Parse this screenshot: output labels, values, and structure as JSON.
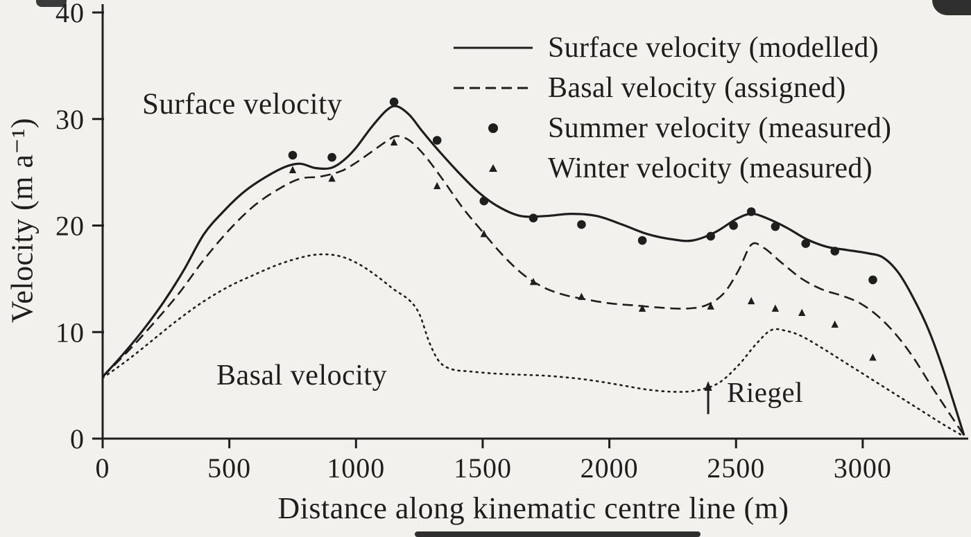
{
  "figure": {
    "background": "#f2f1ee",
    "ink": "#1e1e1e"
  },
  "chart_data": {
    "type": "line",
    "title": "",
    "xlabel": "Distance along kinematic centre line (m)",
    "ylabel": "Velocity (m a⁻¹)",
    "xlim": [
      0,
      3400
    ],
    "ylim": [
      0,
      40
    ],
    "x_ticks": [
      0,
      500,
      1000,
      1500,
      2000,
      2500,
      3000
    ],
    "y_ticks": [
      0,
      10,
      20,
      30,
      40
    ],
    "grid": false,
    "legend_position": "top-right",
    "legend": [
      {
        "label": "Surface velocity (modelled)",
        "swatch": "solid-line"
      },
      {
        "label": "Basal velocity (assigned)",
        "swatch": "dashed-line"
      },
      {
        "label": "Summer velocity (measured)",
        "swatch": "filled-circle"
      },
      {
        "label": "Winter velocity (measured)",
        "swatch": "filled-triangle"
      }
    ],
    "series": [
      {
        "name": "Surface velocity (modelled)",
        "style": "solid",
        "data_name": "surface-velocity-modelled-curve",
        "points": [
          [
            0,
            5.8
          ],
          [
            80,
            7.9
          ],
          [
            160,
            10.2
          ],
          [
            240,
            12.8
          ],
          [
            320,
            15.8
          ],
          [
            400,
            19.2
          ],
          [
            480,
            21.4
          ],
          [
            560,
            23.2
          ],
          [
            640,
            24.5
          ],
          [
            720,
            25.5
          ],
          [
            780,
            25.8
          ],
          [
            840,
            25.4
          ],
          [
            900,
            25.4
          ],
          [
            950,
            26.1
          ],
          [
            1000,
            27.3
          ],
          [
            1060,
            29.2
          ],
          [
            1120,
            30.8
          ],
          [
            1160,
            31.2
          ],
          [
            1210,
            30.4
          ],
          [
            1260,
            28.9
          ],
          [
            1320,
            27.2
          ],
          [
            1400,
            25.1
          ],
          [
            1480,
            23.2
          ],
          [
            1560,
            21.8
          ],
          [
            1650,
            20.9
          ],
          [
            1750,
            20.9
          ],
          [
            1850,
            21.1
          ],
          [
            1950,
            20.9
          ],
          [
            2050,
            20.1
          ],
          [
            2150,
            19.2
          ],
          [
            2250,
            18.7
          ],
          [
            2330,
            18.6
          ],
          [
            2420,
            19.4
          ],
          [
            2500,
            20.6
          ],
          [
            2560,
            21.1
          ],
          [
            2620,
            20.7
          ],
          [
            2700,
            19.8
          ],
          [
            2780,
            18.7
          ],
          [
            2860,
            18.0
          ],
          [
            2940,
            17.7
          ],
          [
            3020,
            17.4
          ],
          [
            3080,
            17.0
          ],
          [
            3140,
            15.6
          ],
          [
            3200,
            13.2
          ],
          [
            3260,
            10.2
          ],
          [
            3320,
            6.3
          ],
          [
            3400,
            0.3
          ]
        ]
      },
      {
        "name": "Basal velocity (assigned)",
        "style": "long-dash",
        "data_name": "basal-velocity-assigned-curve",
        "points": [
          [
            0,
            5.8
          ],
          [
            100,
            8.2
          ],
          [
            200,
            10.8
          ],
          [
            300,
            13.6
          ],
          [
            400,
            16.8
          ],
          [
            500,
            19.6
          ],
          [
            600,
            21.9
          ],
          [
            700,
            23.5
          ],
          [
            780,
            24.4
          ],
          [
            860,
            24.6
          ],
          [
            940,
            25.1
          ],
          [
            1000,
            25.9
          ],
          [
            1060,
            26.9
          ],
          [
            1120,
            27.9
          ],
          [
            1160,
            28.4
          ],
          [
            1210,
            28.0
          ],
          [
            1270,
            26.6
          ],
          [
            1340,
            24.4
          ],
          [
            1420,
            21.7
          ],
          [
            1500,
            19.4
          ],
          [
            1580,
            17.2
          ],
          [
            1660,
            15.4
          ],
          [
            1740,
            14.2
          ],
          [
            1820,
            13.5
          ],
          [
            1900,
            13.1
          ],
          [
            2000,
            12.7
          ],
          [
            2100,
            12.5
          ],
          [
            2200,
            12.3
          ],
          [
            2300,
            12.2
          ],
          [
            2380,
            12.5
          ],
          [
            2450,
            13.6
          ],
          [
            2510,
            15.8
          ],
          [
            2560,
            18.2
          ],
          [
            2610,
            17.9
          ],
          [
            2680,
            16.5
          ],
          [
            2760,
            15.0
          ],
          [
            2840,
            14.0
          ],
          [
            2920,
            13.4
          ],
          [
            2990,
            12.7
          ],
          [
            3060,
            11.5
          ],
          [
            3130,
            9.8
          ],
          [
            3200,
            7.6
          ],
          [
            3280,
            4.6
          ],
          [
            3400,
            0.3
          ]
        ]
      },
      {
        "name": "Basal velocity",
        "style": "dotted",
        "data_name": "basal-velocity-curve",
        "points": [
          [
            0,
            5.7
          ],
          [
            100,
            7.4
          ],
          [
            200,
            9.3
          ],
          [
            300,
            11.2
          ],
          [
            400,
            12.9
          ],
          [
            500,
            14.3
          ],
          [
            600,
            15.4
          ],
          [
            700,
            16.4
          ],
          [
            800,
            17.1
          ],
          [
            870,
            17.3
          ],
          [
            940,
            17.1
          ],
          [
            1010,
            16.4
          ],
          [
            1080,
            15.3
          ],
          [
            1150,
            14.0
          ],
          [
            1210,
            13.0
          ],
          [
            1250,
            11.7
          ],
          [
            1290,
            9.0
          ],
          [
            1330,
            7.2
          ],
          [
            1380,
            6.5
          ],
          [
            1450,
            6.3
          ],
          [
            1550,
            6.1
          ],
          [
            1650,
            6.0
          ],
          [
            1750,
            5.9
          ],
          [
            1850,
            5.7
          ],
          [
            1950,
            5.4
          ],
          [
            2050,
            5.0
          ],
          [
            2150,
            4.6
          ],
          [
            2250,
            4.4
          ],
          [
            2340,
            4.5
          ],
          [
            2430,
            5.2
          ],
          [
            2510,
            6.9
          ],
          [
            2580,
            8.9
          ],
          [
            2640,
            10.2
          ],
          [
            2700,
            10.1
          ],
          [
            2760,
            9.6
          ],
          [
            2840,
            8.5
          ],
          [
            2920,
            7.3
          ],
          [
            3000,
            6.1
          ],
          [
            3080,
            4.9
          ],
          [
            3160,
            3.7
          ],
          [
            3240,
            2.5
          ],
          [
            3320,
            1.3
          ],
          [
            3400,
            0.2
          ]
        ]
      },
      {
        "name": "Summer velocity (measured)",
        "style": "circle-markers",
        "data_name": "summer-velocity-points",
        "points": [
          [
            750,
            26.6
          ],
          [
            905,
            26.4
          ],
          [
            1150,
            31.6
          ],
          [
            1320,
            28.0
          ],
          [
            1505,
            22.3
          ],
          [
            1700,
            20.7
          ],
          [
            1890,
            20.1
          ],
          [
            2130,
            18.6
          ],
          [
            2400,
            19.0
          ],
          [
            2490,
            20.0
          ],
          [
            2560,
            21.3
          ],
          [
            2655,
            19.9
          ],
          [
            2775,
            18.3
          ],
          [
            2890,
            17.6
          ],
          [
            3040,
            14.9
          ]
        ]
      },
      {
        "name": "Winter velocity (measured)",
        "style": "triangle-markers",
        "data_name": "winter-velocity-points",
        "points": [
          [
            750,
            25.2
          ],
          [
            905,
            24.4
          ],
          [
            1150,
            27.8
          ],
          [
            1320,
            23.7
          ],
          [
            1505,
            19.2
          ],
          [
            1700,
            14.7
          ],
          [
            1890,
            13.3
          ],
          [
            2130,
            12.2
          ],
          [
            2400,
            12.4
          ],
          [
            2560,
            12.9
          ],
          [
            2655,
            12.2
          ],
          [
            2760,
            11.8
          ],
          [
            2890,
            10.7
          ],
          [
            3040,
            7.6
          ]
        ]
      }
    ],
    "annotations": [
      {
        "text": "Surface velocity",
        "x": 156,
        "y": 33.0
      },
      {
        "text": "Basal velocity",
        "x": 450,
        "y": 7.5
      },
      {
        "text": "Riegel",
        "x": 2464,
        "y": 5.9,
        "arrow": {
          "x": 2390,
          "y_from": 2.3,
          "y_to": 5.4
        }
      }
    ]
  }
}
